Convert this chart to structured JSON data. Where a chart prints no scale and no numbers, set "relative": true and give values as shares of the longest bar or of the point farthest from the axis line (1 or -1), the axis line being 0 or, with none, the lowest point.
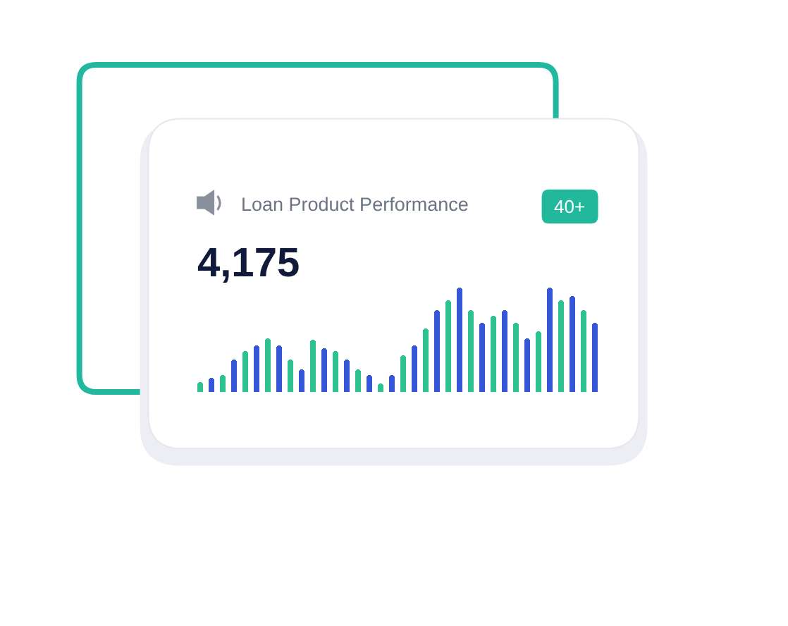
{
  "chart_data": {
    "type": "bar",
    "title": "Loan Product Performance",
    "subtitle": "4,175",
    "annotations": [
      "40+"
    ],
    "categories": [
      null,
      null,
      null,
      null,
      null,
      null,
      null,
      null,
      null,
      null,
      null,
      null,
      null,
      null,
      null,
      null,
      null,
      null,
      null,
      null,
      null,
      null,
      null,
      null,
      null,
      null,
      null,
      null,
      null,
      null,
      null,
      null,
      null,
      null,
      null,
      null
    ],
    "values": [
      0.1,
      0.13,
      0.16,
      0.31,
      0.39,
      0.44,
      0.52,
      0.44,
      0.31,
      0.21,
      0.5,
      0.42,
      0.39,
      0.31,
      0.21,
      0.16,
      0.08,
      0.16,
      0.35,
      0.44,
      0.61,
      0.78,
      0.88,
      1.0,
      0.78,
      0.66,
      0.73,
      0.78,
      0.66,
      0.52,
      0.58,
      1.0,
      0.88,
      0.92,
      0.78,
      0.66
    ],
    "colors": [
      "#2ec28e",
      "#3556d6",
      "#2ec28e",
      "#3556d6",
      "#2ec28e",
      "#3556d6",
      "#2ec28e",
      "#3556d6",
      "#2ec28e",
      "#3556d6",
      "#2ec28e",
      "#3556d6",
      "#2ec28e",
      "#3556d6",
      "#2ec28e",
      "#3556d6",
      "#2ec28e",
      "#3556d6",
      "#2ec28e",
      "#3556d6",
      "#2ec28e",
      "#3556d6",
      "#2ec28e",
      "#3556d6",
      "#2ec28e",
      "#3556d6",
      "#2ec28e",
      "#3556d6",
      "#2ec28e",
      "#3556d6",
      "#2ec28e",
      "#3556d6",
      "#2ec28e",
      "#3556d6",
      "#2ec28e",
      "#3556d6"
    ],
    "relative": true
  }
}
